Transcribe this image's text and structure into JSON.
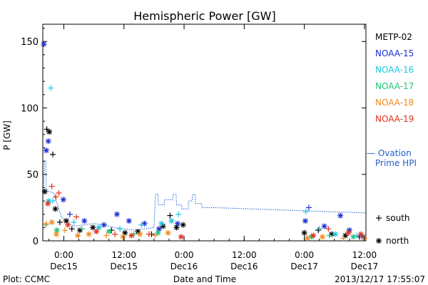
{
  "chart_data": {
    "type": "scatter",
    "title": "Hemispheric Power [GW]",
    "xlabel": "Date and Time",
    "ylabel": "P [GW]",
    "footer_left": "Plot: CCMC",
    "footer_right": "2013/12/17 17:55:07",
    "x_unit": "hours since 2013-12-14 00:00 UT",
    "xlim": [
      19.8,
      84.3
    ],
    "ylim": [
      0,
      163
    ],
    "y_ticks": [
      0,
      50,
      100,
      150
    ],
    "x_ticks": [
      {
        "x": 24,
        "label_top": "0:00",
        "label_bottom": "Dec15"
      },
      {
        "x": 36,
        "label_top": "12:00",
        "label_bottom": "Dec15"
      },
      {
        "x": 48,
        "label_top": "0:00",
        "label_bottom": "Dec16"
      },
      {
        "x": 60,
        "label_top": "12:00",
        "label_bottom": "Dec16"
      },
      {
        "x": 72,
        "label_top": "0:00",
        "label_bottom": "Dec17"
      },
      {
        "x": 84,
        "label_top": "12:00",
        "label_bottom": "Dec17"
      }
    ],
    "legend_placement": "right",
    "marker_legend": [
      {
        "symbol": "+",
        "label": "south"
      },
      {
        "symbol": "*",
        "label": "north"
      }
    ],
    "ovation_label_line1": "— Ovation",
    "ovation_label_line2": "Prime HPI",
    "ovation_color": "#1f5fcc",
    "ovation_line": [
      [
        20.0,
        38
      ],
      [
        20.1,
        60
      ],
      [
        20.4,
        60
      ],
      [
        20.5,
        38
      ],
      [
        22.0,
        36
      ],
      [
        23.5,
        18
      ],
      [
        24.5,
        14
      ],
      [
        26.0,
        11
      ],
      [
        28.0,
        12
      ],
      [
        30.0,
        13
      ],
      [
        32.0,
        12
      ],
      [
        34.0,
        10
      ],
      [
        36.0,
        9
      ],
      [
        38.0,
        8
      ],
      [
        40.0,
        9
      ],
      [
        42.0,
        10
      ],
      [
        42.3,
        35
      ],
      [
        42.8,
        35
      ],
      [
        42.9,
        27
      ],
      [
        44.0,
        27
      ],
      [
        44.1,
        31
      ],
      [
        45.7,
        31
      ],
      [
        45.8,
        35
      ],
      [
        46.4,
        35
      ],
      [
        46.5,
        27
      ],
      [
        47.5,
        27
      ],
      [
        47.6,
        24
      ],
      [
        48.8,
        24
      ],
      [
        48.9,
        30
      ],
      [
        49.6,
        30
      ],
      [
        49.7,
        35
      ],
      [
        50.2,
        35
      ],
      [
        50.3,
        28
      ],
      [
        51.5,
        28
      ],
      [
        51.6,
        25
      ],
      [
        54.0,
        25
      ],
      [
        84.3,
        21
      ]
    ],
    "series": [
      {
        "name": "METP-02",
        "color": "#000000",
        "points": [
          {
            "x": 20.2,
            "y": 37,
            "m": "*"
          },
          {
            "x": 20.6,
            "y": 84,
            "m": "+"
          },
          {
            "x": 21.1,
            "y": 82,
            "m": "*"
          },
          {
            "x": 21.8,
            "y": 65,
            "m": "+"
          },
          {
            "x": 22.3,
            "y": 24,
            "m": "*"
          },
          {
            "x": 23.2,
            "y": 14,
            "m": "+"
          },
          {
            "x": 24.5,
            "y": 15,
            "m": "*"
          },
          {
            "x": 25.6,
            "y": 9,
            "m": "+"
          },
          {
            "x": 27.2,
            "y": 8,
            "m": "*"
          },
          {
            "x": 29.8,
            "y": 10,
            "m": "*"
          },
          {
            "x": 33.5,
            "y": 8,
            "m": "+"
          },
          {
            "x": 36.2,
            "y": 6,
            "m": "*"
          },
          {
            "x": 38.8,
            "y": 7,
            "m": "*"
          },
          {
            "x": 41.5,
            "y": 5,
            "m": "+"
          },
          {
            "x": 43.8,
            "y": 11,
            "m": "*"
          },
          {
            "x": 45.2,
            "y": 19,
            "m": "+"
          },
          {
            "x": 46.5,
            "y": 10,
            "m": "*"
          },
          {
            "x": 47.8,
            "y": 12,
            "m": "*"
          },
          {
            "x": 72.0,
            "y": 6,
            "m": "*"
          },
          {
            "x": 74.8,
            "y": 8,
            "m": "+"
          },
          {
            "x": 77.5,
            "y": 5,
            "m": "*"
          },
          {
            "x": 80.2,
            "y": 4,
            "m": "*"
          },
          {
            "x": 83.0,
            "y": 3,
            "m": "+"
          }
        ]
      },
      {
        "name": "NOAA-15",
        "color": "#1a2ed4",
        "points": [
          {
            "x": 20.0,
            "y": 148,
            "m": "*"
          },
          {
            "x": 20.5,
            "y": 68,
            "m": "*"
          },
          {
            "x": 20.9,
            "y": 75,
            "m": "*"
          },
          {
            "x": 23.9,
            "y": 31,
            "m": "*"
          },
          {
            "x": 25.2,
            "y": 20,
            "m": "+"
          },
          {
            "x": 28.1,
            "y": 15,
            "m": "*"
          },
          {
            "x": 32.0,
            "y": 12,
            "m": "*"
          },
          {
            "x": 34.6,
            "y": 20,
            "m": "*"
          },
          {
            "x": 37.0,
            "y": 15,
            "m": "*"
          },
          {
            "x": 40.1,
            "y": 13,
            "m": "*"
          },
          {
            "x": 43.0,
            "y": 9,
            "m": "*"
          },
          {
            "x": 46.7,
            "y": 13,
            "m": "*"
          },
          {
            "x": 72.2,
            "y": 15,
            "m": "*"
          },
          {
            "x": 72.9,
            "y": 25,
            "m": "+"
          },
          {
            "x": 76.0,
            "y": 11,
            "m": "*"
          },
          {
            "x": 79.2,
            "y": 19,
            "m": "*"
          },
          {
            "x": 81.0,
            "y": 8,
            "m": "*"
          },
          {
            "x": 83.7,
            "y": 3,
            "m": "*"
          }
        ]
      },
      {
        "name": "NOAA-16",
        "color": "#1bc6e0",
        "points": [
          {
            "x": 21.4,
            "y": 115,
            "m": "+"
          },
          {
            "x": 21.0,
            "y": 30,
            "m": "*"
          },
          {
            "x": 21.8,
            "y": 30,
            "m": "+"
          },
          {
            "x": 26.0,
            "y": 14,
            "m": "+"
          },
          {
            "x": 31.0,
            "y": 10,
            "m": "*"
          },
          {
            "x": 35.2,
            "y": 9,
            "m": "+"
          },
          {
            "x": 39.5,
            "y": 12,
            "m": "+"
          },
          {
            "x": 43.5,
            "y": 13,
            "m": "*"
          },
          {
            "x": 45.5,
            "y": 15,
            "m": "*"
          },
          {
            "x": 46.9,
            "y": 20,
            "m": "+"
          },
          {
            "x": 72.3,
            "y": 22,
            "m": "+"
          },
          {
            "x": 75.0,
            "y": 9,
            "m": "+"
          },
          {
            "x": 78.2,
            "y": 5,
            "m": "*"
          },
          {
            "x": 82.5,
            "y": 4,
            "m": "+"
          }
        ]
      },
      {
        "name": "NOAA-17",
        "color": "#22c27a",
        "points": [
          {
            "x": 20.4,
            "y": 12,
            "m": "+"
          },
          {
            "x": 22.6,
            "y": 8,
            "m": "*"
          },
          {
            "x": 27.6,
            "y": 9,
            "m": "+"
          },
          {
            "x": 33.0,
            "y": 7,
            "m": "*"
          },
          {
            "x": 38.0,
            "y": 5,
            "m": "+"
          },
          {
            "x": 42.8,
            "y": 6,
            "m": "*"
          },
          {
            "x": 73.4,
            "y": 3,
            "m": "*"
          },
          {
            "x": 77.0,
            "y": 4,
            "m": "+"
          },
          {
            "x": 81.8,
            "y": 3,
            "m": "*"
          }
        ]
      },
      {
        "name": "NOAA-18",
        "color": "#f08a1e",
        "points": [
          {
            "x": 20.5,
            "y": 13,
            "m": "+"
          },
          {
            "x": 21.6,
            "y": 14,
            "m": "*"
          },
          {
            "x": 22.5,
            "y": 5,
            "m": "*"
          },
          {
            "x": 24.2,
            "y": 8,
            "m": "+"
          },
          {
            "x": 26.8,
            "y": 4,
            "m": "*"
          },
          {
            "x": 29.0,
            "y": 5,
            "m": "*"
          },
          {
            "x": 32.5,
            "y": 4,
            "m": "+"
          },
          {
            "x": 35.8,
            "y": 3,
            "m": "*"
          },
          {
            "x": 39.2,
            "y": 5,
            "m": "*"
          },
          {
            "x": 42.2,
            "y": 4,
            "m": "+"
          },
          {
            "x": 44.8,
            "y": 6,
            "m": "*"
          },
          {
            "x": 72.6,
            "y": 2,
            "m": "*"
          },
          {
            "x": 75.6,
            "y": 3,
            "m": "*"
          },
          {
            "x": 79.8,
            "y": 2,
            "m": "+"
          },
          {
            "x": 84.0,
            "y": 2,
            "m": "*"
          }
        ]
      },
      {
        "name": "NOAA-19",
        "color": "#e0301e",
        "points": [
          {
            "x": 20.8,
            "y": 28,
            "m": "*"
          },
          {
            "x": 21.6,
            "y": 41,
            "m": "+"
          },
          {
            "x": 22.4,
            "y": 33,
            "m": "+"
          },
          {
            "x": 23.0,
            "y": 36,
            "m": "+"
          },
          {
            "x": 24.8,
            "y": 12,
            "m": "*"
          },
          {
            "x": 26.5,
            "y": 18,
            "m": "+"
          },
          {
            "x": 30.5,
            "y": 7,
            "m": "*"
          },
          {
            "x": 34.2,
            "y": 5,
            "m": "+"
          },
          {
            "x": 37.5,
            "y": 4,
            "m": "*"
          },
          {
            "x": 41.0,
            "y": 5,
            "m": "+"
          },
          {
            "x": 47.4,
            "y": 3,
            "m": "*"
          },
          {
            "x": 73.8,
            "y": 4,
            "m": "*"
          },
          {
            "x": 76.8,
            "y": 9,
            "m": "+"
          },
          {
            "x": 80.8,
            "y": 6,
            "m": "*"
          },
          {
            "x": 83.3,
            "y": 5,
            "m": "*"
          }
        ]
      }
    ]
  }
}
